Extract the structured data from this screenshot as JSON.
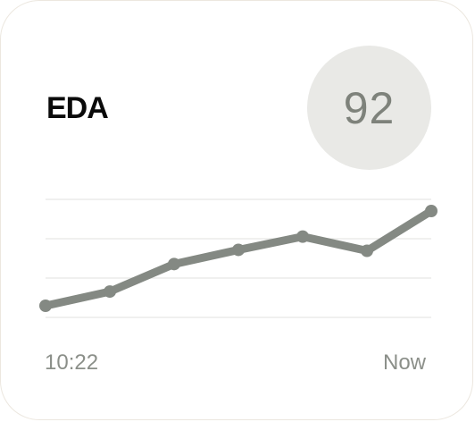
{
  "card": {
    "title": "EDA",
    "score": "92"
  },
  "colors": {
    "line": "#848983",
    "score_text": "#7e827b",
    "score_bg": "#e9e9e6",
    "grid": "#ebebea",
    "axis_text": "#8b8f89"
  },
  "chart_data": {
    "type": "line",
    "x_labels": [
      "10:22",
      "Now"
    ],
    "values": [
      0.0,
      0.15,
      0.44,
      0.59,
      0.73,
      0.58,
      1.0
    ],
    "grid": true,
    "gridlines": 4
  }
}
